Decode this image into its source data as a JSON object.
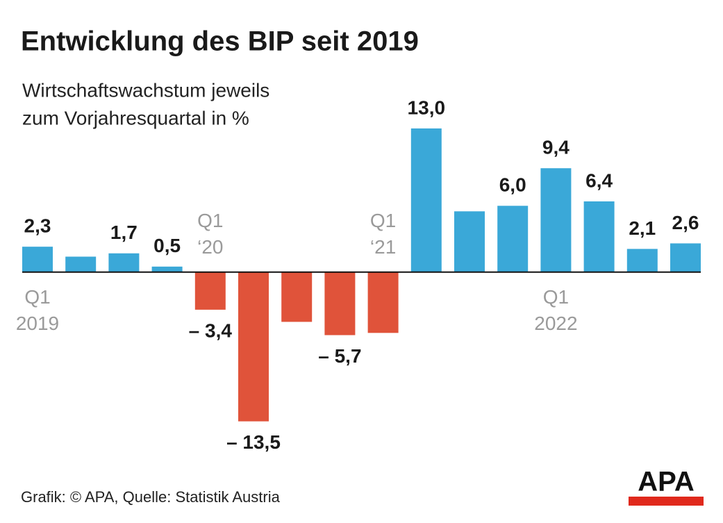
{
  "chart_data": {
    "type": "bar",
    "title": "Entwicklung des BIP seit 2019",
    "subtitle": [
      "Wirtschaftswachstum jeweils",
      "zum Vorjahresquartal in %"
    ],
    "categories": [
      [
        "Q1",
        "2019"
      ],
      null,
      null,
      null,
      [
        "Q1",
        "‘20"
      ],
      null,
      null,
      null,
      [
        "Q1",
        "‘21"
      ],
      null,
      null,
      null,
      [
        "Q1",
        "2022"
      ],
      null,
      null,
      null
    ],
    "values": [
      2.3,
      1.4,
      1.7,
      0.5,
      -3.4,
      -13.5,
      -4.5,
      -5.7,
      -5.5,
      13.0,
      5.5,
      6.0,
      9.4,
      6.4,
      2.1,
      2.6
    ],
    "value_labels": [
      "2,3",
      null,
      "1,7",
      "0,5",
      "– 3,4",
      "– 13,5",
      null,
      "– 5,7",
      null,
      "13,0",
      null,
      "6,0",
      "9,4",
      "6,4",
      "2,1",
      "2,6"
    ],
    "color_positive": "#3aa8d8",
    "color_negative": "#e0533a",
    "ylim": [
      -15,
      14
    ],
    "source": "Grafik: © APA, Quelle: Statistik Austria",
    "logo": "APA"
  }
}
